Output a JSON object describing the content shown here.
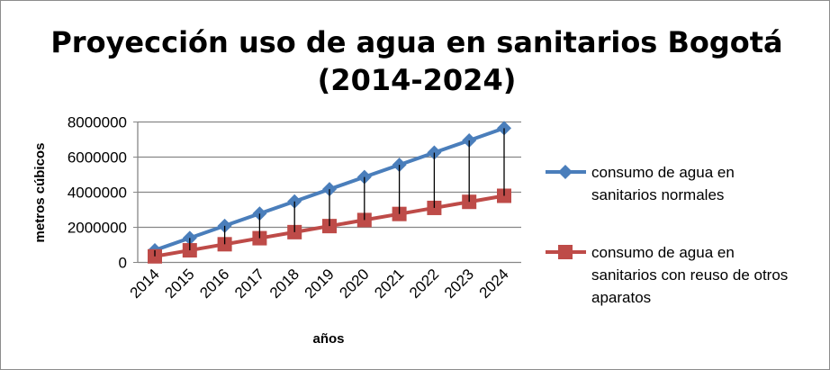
{
  "chart_data": {
    "type": "line",
    "title_lines": [
      "Proyección uso de agua en sanitarios Bogotá",
      "(2014-2024)"
    ],
    "xlabel": "años",
    "ylabel": "metros cúbicos",
    "categories": [
      "2014",
      "2015",
      "2016",
      "2017",
      "2018",
      "2019",
      "2020",
      "2021",
      "2022",
      "2023",
      "2024"
    ],
    "ylim": [
      0,
      8000000
    ],
    "yticks": [
      "0",
      "2000000",
      "4000000",
      "6000000",
      "8000000"
    ],
    "grid": true,
    "high_low_lines": true,
    "legend_position": "right",
    "series": [
      {
        "name_lines": [
          "consumo de agua en",
          "sanitarios normales"
        ],
        "color": "#4a7ebb",
        "marker": "diamond",
        "values": [
          695000,
          1390000,
          2085000,
          2780000,
          3475000,
          4170000,
          4865000,
          5560000,
          6255000,
          6950000,
          7645000
        ]
      },
      {
        "name_lines": [
          "consumo de agua en",
          "sanitarios con reuso de otros",
          "aparatos"
        ],
        "color": "#be4b48",
        "marker": "square",
        "values": [
          345000,
          690000,
          1035000,
          1380000,
          1725000,
          2070000,
          2415000,
          2760000,
          3105000,
          3450000,
          3795000
        ]
      }
    ]
  }
}
